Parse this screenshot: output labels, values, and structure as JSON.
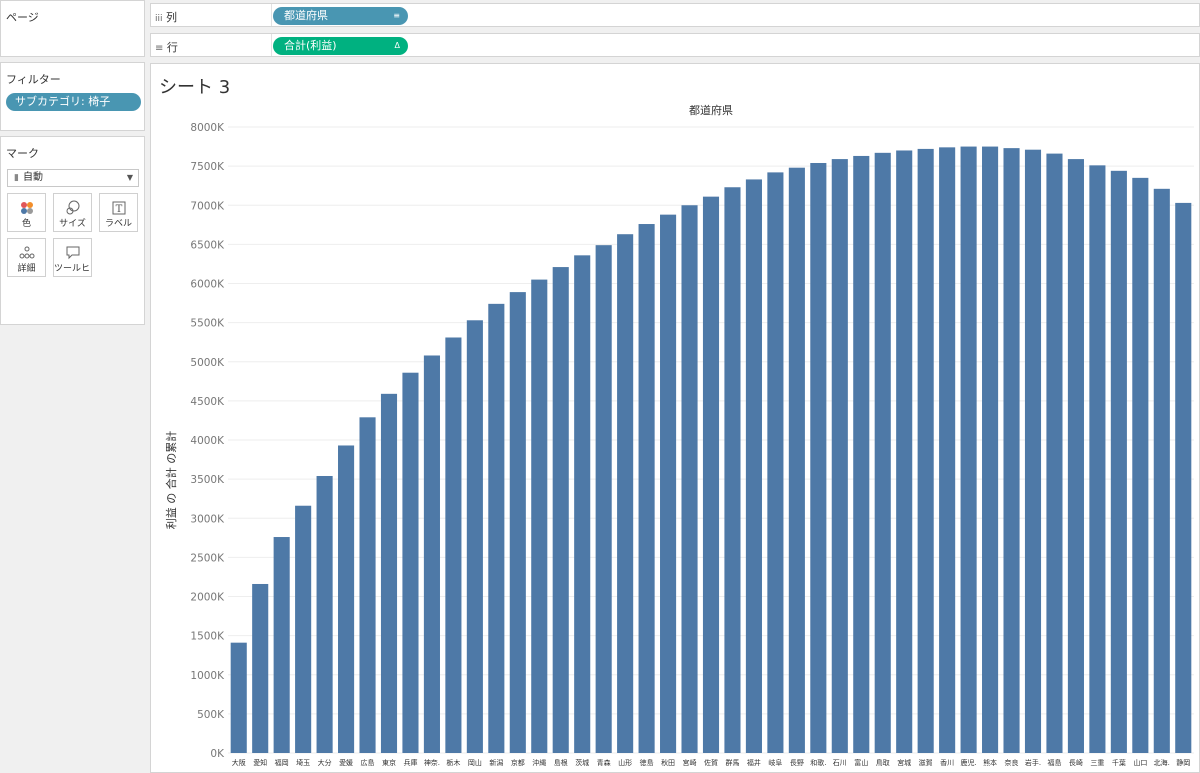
{
  "shelves": {
    "columns": {
      "label": "列",
      "pill": "都道府県"
    },
    "rows": {
      "label": "行",
      "pill": "合計(利益)"
    }
  },
  "panels": {
    "pages": {
      "title": "ページ"
    },
    "filters": {
      "title": "フィルター",
      "pill": "サブカテゴリ: 椅子"
    },
    "marks": {
      "title": "マーク",
      "type": "自動",
      "buttons": [
        {
          "label": "色",
          "icon": "color-icon"
        },
        {
          "label": "サイズ",
          "icon": "size-icon"
        },
        {
          "label": "ラベル",
          "icon": "label-icon"
        },
        {
          "label": "詳細",
          "icon": "detail-icon"
        },
        {
          "label": "ツールヒ…",
          "icon": "tooltip-icon"
        }
      ]
    }
  },
  "sheet": {
    "title": "シート 3"
  },
  "colors": {
    "bar": "#4e79a7",
    "blue_pill": "#4996b2",
    "green_pill": "#00b180"
  },
  "chart_data": {
    "type": "bar",
    "title": "",
    "xlabel": "都道府県",
    "ylabel": "利益 の 合計 の累計",
    "ylim": [
      0,
      8000
    ],
    "yticks": [
      "0K",
      "500K",
      "1000K",
      "1500K",
      "2000K",
      "2500K",
      "3000K",
      "3500K",
      "4000K",
      "4500K",
      "5000K",
      "5500K",
      "6000K",
      "6500K",
      "7000K",
      "7500K",
      "8000K"
    ],
    "categories": [
      "大阪",
      "愛知",
      "福岡",
      "埼玉",
      "大分",
      "愛媛",
      "広島",
      "東京",
      "兵庫",
      "神奈.",
      "栃木",
      "岡山",
      "新潟",
      "京都",
      "沖縄",
      "島根",
      "茨城",
      "青森",
      "山形",
      "徳島",
      "秋田",
      "宮崎",
      "佐賀",
      "群馬",
      "福井",
      "岐阜",
      "長野",
      "和歌.",
      "石川",
      "富山",
      "鳥取",
      "宮城",
      "滋賀",
      "香川",
      "鹿児.",
      "熊本",
      "奈良",
      "岩手.",
      "福島",
      "長崎",
      "三重",
      "千葉",
      "山口",
      "北海.",
      "静岡"
    ],
    "values": [
      1410,
      2160,
      2760,
      3160,
      3540,
      3930,
      4290,
      4590,
      4860,
      5080,
      5310,
      5530,
      5740,
      5890,
      6050,
      6210,
      6360,
      6490,
      6630,
      6760,
      6880,
      7000,
      7110,
      7230,
      7330,
      7420,
      7480,
      7540,
      7590,
      7630,
      7670,
      7700,
      7720,
      7740,
      7750,
      7750,
      7730,
      7710,
      7660,
      7590,
      7510,
      7440,
      7350,
      7210,
      7030
    ]
  }
}
